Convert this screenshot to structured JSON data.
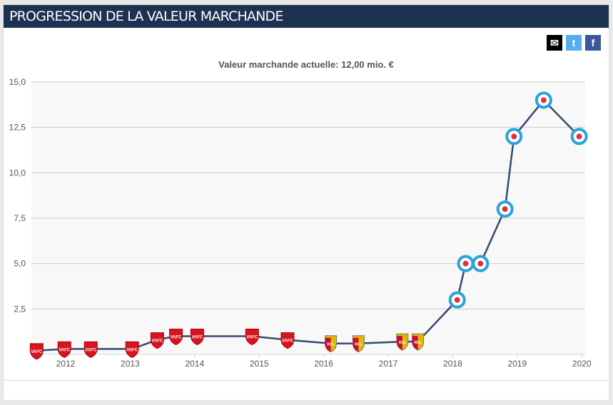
{
  "header": {
    "title": "PROGRESSION DE LA VALEUR MARCHANDE"
  },
  "share": [
    {
      "icon": "mail-icon",
      "label": "✉"
    },
    {
      "icon": "twitter-icon",
      "label": "t"
    },
    {
      "icon": "facebook-icon",
      "label": "f"
    }
  ],
  "colors": {
    "header": "#1d3150",
    "line": "#344a6e",
    "VAFC": "#d7141f",
    "RCL": "#e5b800",
    "RCSA": "#2aa3dc"
  },
  "chart_data": {
    "type": "line",
    "title": "Valeur marchande actuelle: 12,00 mio. €",
    "xlabel": "",
    "ylabel": "",
    "ylim": [
      0,
      15
    ],
    "xlim": [
      2011.5,
      2020
    ],
    "yticks": [
      "2,5",
      "5,0",
      "7,5",
      "10,0",
      "12,5",
      "15,0"
    ],
    "xticks": [
      "2012",
      "2013",
      "2014",
      "2015",
      "2016",
      "2017",
      "2018",
      "2019",
      "2020"
    ],
    "grid": true,
    "points": [
      {
        "x": 2011.55,
        "y": 0.2,
        "club": "VAFC"
      },
      {
        "x": 2011.98,
        "y": 0.3,
        "club": "VAFC"
      },
      {
        "x": 2012.39,
        "y": 0.3,
        "club": "VAFC"
      },
      {
        "x": 2013.03,
        "y": 0.3,
        "club": "VAFC"
      },
      {
        "x": 2013.42,
        "y": 0.8,
        "club": "VAFC"
      },
      {
        "x": 2013.71,
        "y": 1.0,
        "club": "VAFC"
      },
      {
        "x": 2014.04,
        "y": 1.0,
        "club": "VAFC"
      },
      {
        "x": 2014.89,
        "y": 1.0,
        "club": "VAFC"
      },
      {
        "x": 2015.44,
        "y": 0.8,
        "club": "VAFC"
      },
      {
        "x": 2016.11,
        "y": 0.6,
        "club": "RCL"
      },
      {
        "x": 2016.54,
        "y": 0.6,
        "club": "RCL"
      },
      {
        "x": 2017.22,
        "y": 0.7,
        "club": "RCL"
      },
      {
        "x": 2017.46,
        "y": 0.7,
        "club": "RCL"
      },
      {
        "x": 2018.07,
        "y": 3.0,
        "club": "RCSA"
      },
      {
        "x": 2018.2,
        "y": 5.0,
        "club": "RCSA"
      },
      {
        "x": 2018.43,
        "y": 5.0,
        "club": "RCSA"
      },
      {
        "x": 2018.81,
        "y": 8.0,
        "club": "RCSA"
      },
      {
        "x": 2018.95,
        "y": 12.0,
        "club": "RCSA"
      },
      {
        "x": 2019.41,
        "y": 14.0,
        "club": "RCSA"
      },
      {
        "x": 2019.96,
        "y": 12.0,
        "club": "RCSA"
      }
    ]
  }
}
